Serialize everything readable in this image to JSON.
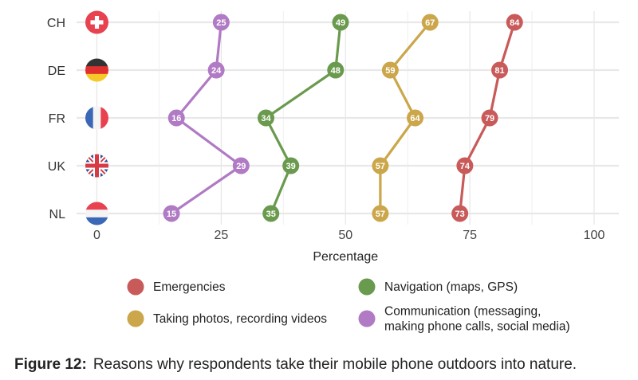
{
  "chart_data": {
    "type": "line",
    "orientation": "horizontal-dot",
    "categories": [
      "CH",
      "DE",
      "FR",
      "UK",
      "NL"
    ],
    "category_flags": [
      {
        "country": "CH",
        "flag": "swiss-flag-icon"
      },
      {
        "country": "DE",
        "flag": "german-flag-icon"
      },
      {
        "country": "FR",
        "flag": "french-flag-icon"
      },
      {
        "country": "UK",
        "flag": "uk-flag-icon"
      },
      {
        "country": "NL",
        "flag": "dutch-flag-icon"
      }
    ],
    "series": [
      {
        "name": "Emergencies",
        "color": "#c85a5a",
        "values": [
          84,
          81,
          79,
          74,
          73
        ]
      },
      {
        "name": "Navigation (maps, GPS)",
        "color": "#6a9a4d",
        "values": [
          49,
          48,
          34,
          39,
          35
        ]
      },
      {
        "name": "Taking photos, recording videos",
        "color": "#cba64a",
        "values": [
          67,
          59,
          64,
          57,
          57
        ]
      },
      {
        "name": "Communication (messaging, making phone calls, social media)",
        "legend_lines": [
          "Communication (messaging,",
          "making phone calls, social media)"
        ],
        "color": "#b07ac4",
        "values": [
          25,
          24,
          16,
          29,
          15
        ]
      }
    ],
    "legend_order": [
      0,
      1,
      2,
      3
    ],
    "xlabel": "Percentage",
    "ylabel": "",
    "xlim": [
      0,
      100
    ],
    "xticks": [
      0,
      25,
      50,
      75,
      100
    ],
    "grid": true,
    "legend_position": "bottom"
  },
  "caption": {
    "label": "Figure 12:",
    "text": "Reasons why respondents take their mobile phone outdoors into nature."
  }
}
